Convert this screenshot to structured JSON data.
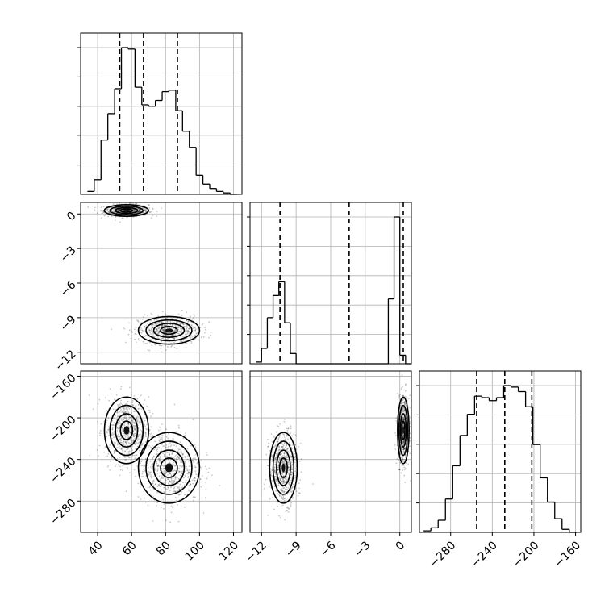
{
  "chart_data": {
    "type": "corner",
    "parameters": [
      {
        "range": [
          30,
          125
        ],
        "ticks": [
          40,
          60,
          80,
          100,
          120
        ],
        "tick_labels": [
          "40",
          "60",
          "80",
          "100",
          "120"
        ],
        "quantiles": [
          53,
          67,
          87
        ],
        "hist_edges": [
          34,
          38,
          42,
          46,
          50,
          54,
          58,
          62,
          66,
          70,
          74,
          78,
          82,
          86,
          90,
          94,
          98,
          102,
          106,
          110,
          114,
          118,
          122
        ],
        "hist_counts": [
          2,
          10,
          37,
          55,
          72,
          100,
          99,
          73,
          61,
          60,
          64,
          70,
          71,
          57,
          43,
          32,
          13,
          7,
          4,
          2,
          1,
          0
        ]
      },
      {
        "range": [
          -13,
          1
        ],
        "ticks": [
          -12,
          -9,
          -6,
          -3,
          0
        ],
        "tick_labels": [
          "−12",
          "−9",
          "−6",
          "−3",
          "0"
        ],
        "quantiles": [
          -10.4,
          -4.4,
          0.3
        ],
        "hist_edges": [
          -12.5,
          -12.0,
          -11.5,
          -11.0,
          -10.5,
          -10.0,
          -9.5,
          -9.0,
          -8.5,
          -8.0,
          -7.5,
          -7.0,
          -6.5,
          -6.0,
          -5.5,
          -5.0,
          -4.5,
          -4.0,
          -3.5,
          -3.0,
          -2.5,
          -2.0,
          -1.5,
          -1.0,
          -0.5,
          0.0,
          0.5,
          1.0
        ],
        "hist_counts": [
          1,
          9,
          27,
          40,
          48,
          24,
          6,
          0,
          0,
          0,
          0,
          0,
          0,
          0,
          0,
          0,
          0,
          0,
          0,
          0,
          0,
          0,
          0,
          38,
          86,
          5,
          0
        ]
      },
      {
        "range": [
          -310,
          -155
        ],
        "ticks": [
          -280,
          -240,
          -200,
          -160
        ],
        "tick_labels": [
          "−280",
          "−240",
          "−200",
          "−160"
        ],
        "quantiles": [
          -255,
          -228,
          -202
        ],
        "hist_edges": [
          -306,
          -299,
          -292,
          -285,
          -278,
          -271,
          -264,
          -257,
          -250,
          -243,
          -236,
          -229,
          -222,
          -215,
          -208,
          -201,
          -194,
          -187,
          -180,
          -173,
          -166,
          -159
        ],
        "hist_counts": [
          1,
          3,
          8,
          22,
          44,
          64,
          78,
          90,
          89,
          87,
          89,
          97,
          96,
          93,
          83,
          58,
          36,
          20,
          9,
          2,
          0
        ]
      }
    ],
    "clusters": [
      {
        "mean": [
          57,
          0.3,
          -212
        ],
        "sd": [
          6.5,
          0.25,
          16
        ],
        "weight": 0.5
      },
      {
        "mean": [
          82,
          -10.1,
          -248
        ],
        "sd": [
          9,
          0.6,
          17
        ],
        "weight": 0.5
      }
    ]
  }
}
